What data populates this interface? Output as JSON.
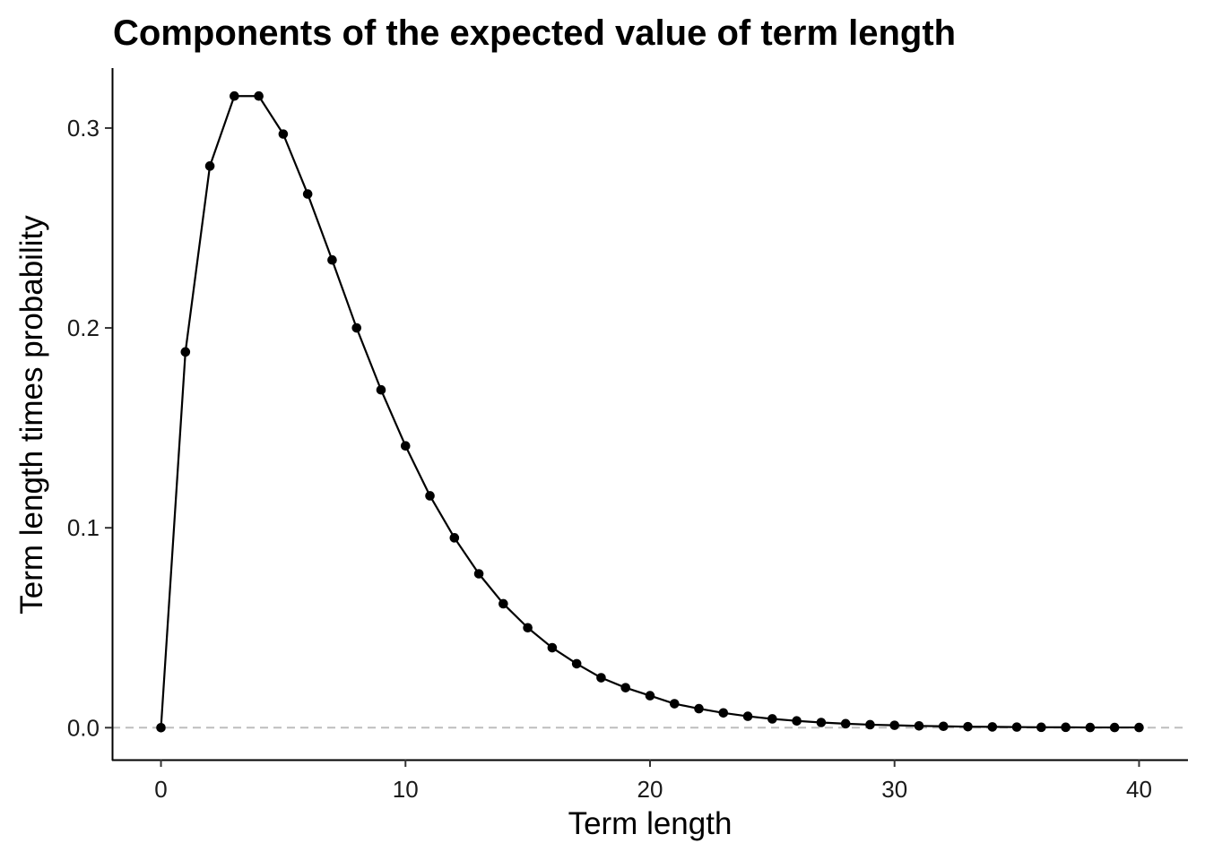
{
  "chart_data": {
    "type": "line",
    "title": "Components of the expected value of term length",
    "xlabel": "Term length",
    "ylabel": "Term length times probability",
    "xlim": [
      -2,
      42
    ],
    "ylim": [
      -0.016,
      0.33
    ],
    "xticks": [
      0,
      10,
      20,
      30,
      40
    ],
    "xtick_labels": [
      "0",
      "10",
      "20",
      "30",
      "40"
    ],
    "yticks": [
      0.0,
      0.1,
      0.2,
      0.3
    ],
    "ytick_labels": [
      "0.0",
      "0.1",
      "0.2",
      "0.3"
    ],
    "grid": false,
    "reference_line": {
      "y": 0,
      "style": "dashed",
      "color": "#bdbdbd"
    },
    "series": [
      {
        "color": "#000000",
        "markers": true,
        "x": [
          0,
          1,
          2,
          3,
          4,
          5,
          6,
          7,
          8,
          9,
          10,
          11,
          12,
          13,
          14,
          15,
          16,
          17,
          18,
          19,
          20,
          21,
          22,
          23,
          24,
          25,
          26,
          27,
          28,
          29,
          30,
          31,
          32,
          33,
          34,
          35,
          36,
          37,
          38,
          39,
          40
        ],
        "y": [
          0,
          0.188,
          0.281,
          0.316,
          0.316,
          0.297,
          0.267,
          0.234,
          0.2,
          0.169,
          0.141,
          0.116,
          0.095,
          0.077,
          0.062,
          0.05,
          0.04,
          0.032,
          0.025,
          0.02,
          0.016,
          0.012,
          0.0095,
          0.0074,
          0.0057,
          0.0044,
          0.0034,
          0.0026,
          0.002,
          0.0015,
          0.0012,
          0.0009,
          0.0007,
          0.0005,
          0.0004,
          0.0003,
          0.0002,
          0.0002,
          0.0001,
          0.0001,
          0.0001
        ]
      }
    ]
  }
}
